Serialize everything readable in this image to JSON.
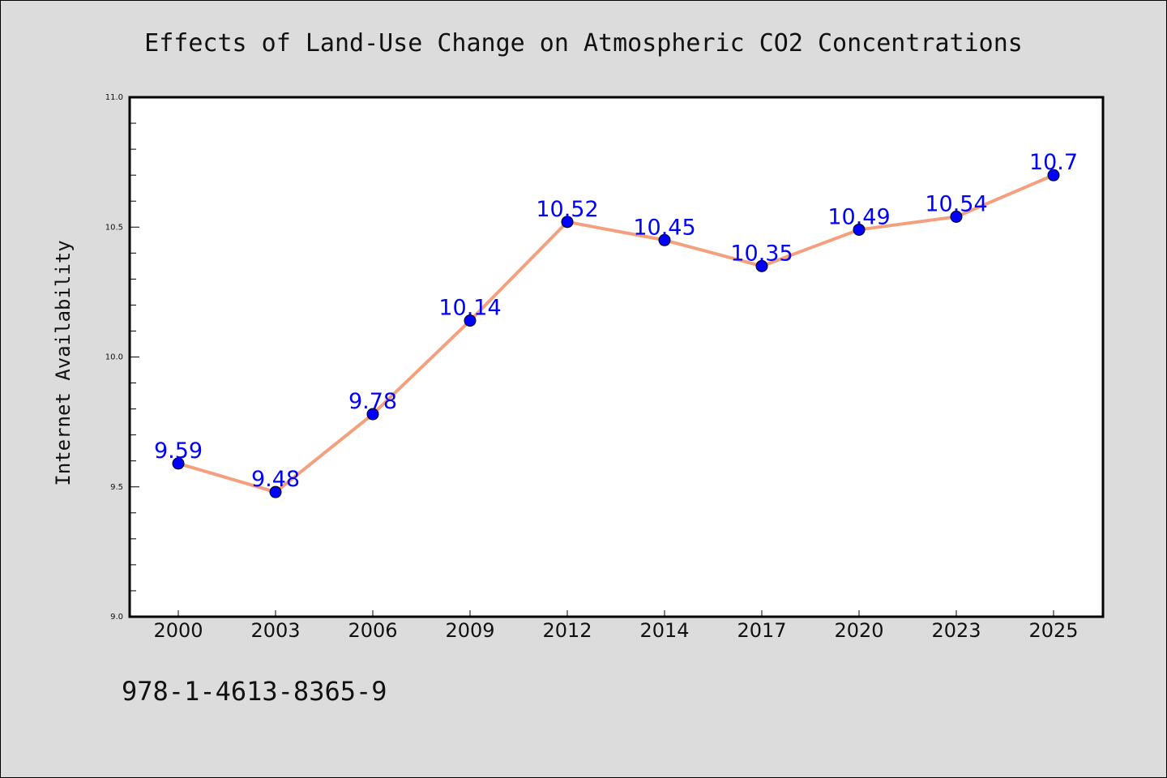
{
  "chart_data": {
    "type": "line",
    "title": "Effects of Land-Use Change on Atmospheric CO2 Concentrations",
    "xlabel": "",
    "ylabel": "Internet Availability",
    "categories": [
      "2000",
      "2003",
      "2006",
      "2009",
      "2012",
      "2014",
      "2017",
      "2020",
      "2023",
      "2025"
    ],
    "series": [
      {
        "values": [
          9.59,
          9.48,
          9.78,
          10.14,
          10.52,
          10.45,
          10.35,
          10.49,
          10.54,
          10.7
        ],
        "data_labels": [
          "9.59",
          "9.48",
          "9.78",
          "10.14",
          "10.52",
          "10.45",
          "10.35",
          "10.49",
          "10.54",
          "10.7"
        ],
        "line_color": "#f4a07e",
        "marker_color": "#0000ff"
      }
    ],
    "ylim": [
      9.0,
      11.0
    ],
    "yticks": [
      "9.0",
      "9.5",
      "10.0",
      "10.5",
      "11.0"
    ],
    "grid": false,
    "legend": "none"
  },
  "footnote": "978-1-4613-8365-9",
  "colors": {
    "background": "#dcdcdc",
    "plot_background": "#ffffff",
    "line": "#f4a07e",
    "marker": "#0000ff",
    "data_label": "#0000ff"
  }
}
